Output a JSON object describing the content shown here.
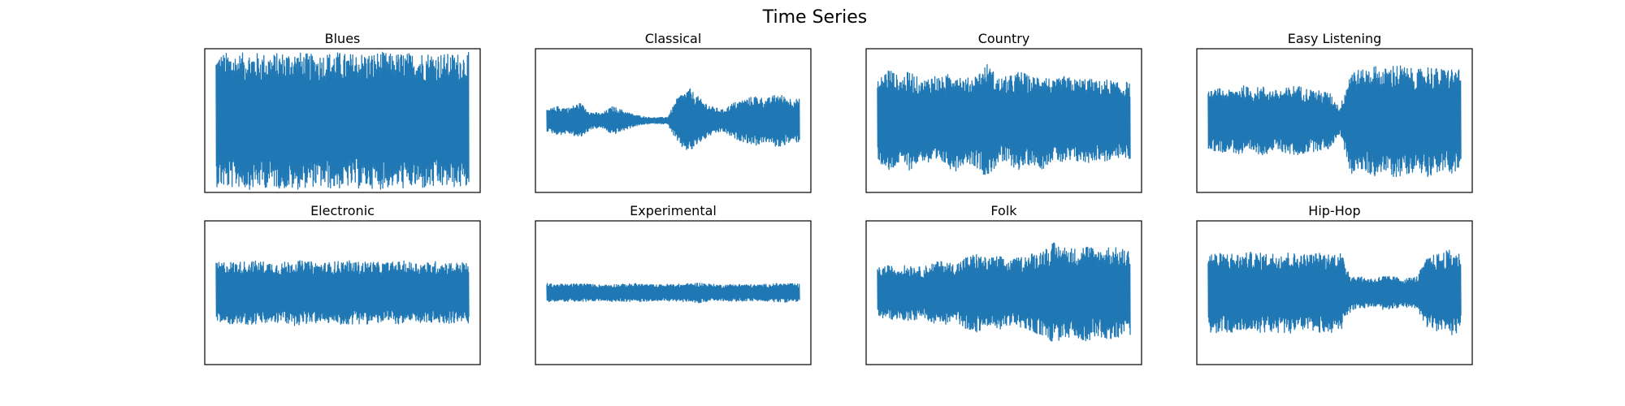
{
  "figure": {
    "title": "Time Series",
    "line_color": "#1f77b4"
  },
  "chart_data": [
    {
      "type": "line",
      "title": "Blues",
      "xlabel": "",
      "ylabel": "",
      "axes": "hidden",
      "envelope": [
        0.92,
        0.95,
        0.93,
        0.96,
        0.94,
        0.93,
        0.95,
        0.97,
        0.94,
        0.92,
        0.95,
        0.96,
        0.93,
        0.95,
        0.94,
        0.96,
        0.93,
        0.95,
        0.94,
        0.96,
        0.95,
        0.93,
        0.94,
        0.95
      ]
    },
    {
      "type": "line",
      "title": "Classical",
      "xlabel": "",
      "ylabel": "",
      "axes": "hidden",
      "envelope": [
        0.15,
        0.2,
        0.18,
        0.25,
        0.12,
        0.1,
        0.2,
        0.14,
        0.08,
        0.05,
        0.04,
        0.05,
        0.35,
        0.45,
        0.3,
        0.2,
        0.15,
        0.25,
        0.3,
        0.35,
        0.3,
        0.38,
        0.32,
        0.3
      ]
    },
    {
      "type": "line",
      "title": "Country",
      "xlabel": "",
      "ylabel": "",
      "axes": "hidden",
      "envelope": [
        0.55,
        0.75,
        0.6,
        0.7,
        0.55,
        0.65,
        0.6,
        0.72,
        0.58,
        0.65,
        0.8,
        0.6,
        0.62,
        0.7,
        0.6,
        0.68,
        0.55,
        0.62,
        0.58,
        0.6,
        0.55,
        0.58,
        0.52,
        0.55
      ]
    },
    {
      "type": "line",
      "title": "Easy Listening",
      "xlabel": "",
      "ylabel": "",
      "axes": "hidden",
      "envelope": [
        0.4,
        0.45,
        0.42,
        0.5,
        0.45,
        0.48,
        0.42,
        0.45,
        0.5,
        0.45,
        0.42,
        0.4,
        0.18,
        0.75,
        0.7,
        0.78,
        0.72,
        0.8,
        0.75,
        0.7,
        0.78,
        0.72,
        0.74,
        0.7
      ]
    },
    {
      "type": "line",
      "title": "Electronic",
      "xlabel": "",
      "ylabel": "",
      "axes": "hidden",
      "envelope": [
        0.42,
        0.44,
        0.43,
        0.45,
        0.44,
        0.43,
        0.42,
        0.46,
        0.44,
        0.43,
        0.42,
        0.44,
        0.45,
        0.43,
        0.44,
        0.42,
        0.43,
        0.44,
        0.43,
        0.42,
        0.44,
        0.43,
        0.42,
        0.43
      ]
    },
    {
      "type": "line",
      "title": "Experimental",
      "xlabel": "",
      "ylabel": "",
      "axes": "hidden",
      "envelope": [
        0.13,
        0.12,
        0.12,
        0.13,
        0.12,
        0.11,
        0.12,
        0.12,
        0.13,
        0.12,
        0.11,
        0.12,
        0.12,
        0.13,
        0.14,
        0.12,
        0.11,
        0.12,
        0.12,
        0.11,
        0.12,
        0.13,
        0.13,
        0.12
      ]
    },
    {
      "type": "line",
      "title": "Folk",
      "xlabel": "",
      "ylabel": "",
      "axes": "hidden",
      "envelope": [
        0.35,
        0.38,
        0.36,
        0.4,
        0.35,
        0.42,
        0.45,
        0.4,
        0.5,
        0.55,
        0.48,
        0.52,
        0.45,
        0.5,
        0.55,
        0.6,
        0.7,
        0.65,
        0.62,
        0.68,
        0.6,
        0.65,
        0.62,
        0.6
      ]
    },
    {
      "type": "line",
      "title": "Hip-Hop",
      "xlabel": "",
      "ylabel": "",
      "axes": "hidden",
      "envelope": [
        0.58,
        0.55,
        0.56,
        0.54,
        0.57,
        0.55,
        0.56,
        0.58,
        0.55,
        0.54,
        0.56,
        0.55,
        0.57,
        0.25,
        0.22,
        0.2,
        0.24,
        0.22,
        0.2,
        0.23,
        0.5,
        0.55,
        0.6,
        0.55
      ]
    }
  ]
}
